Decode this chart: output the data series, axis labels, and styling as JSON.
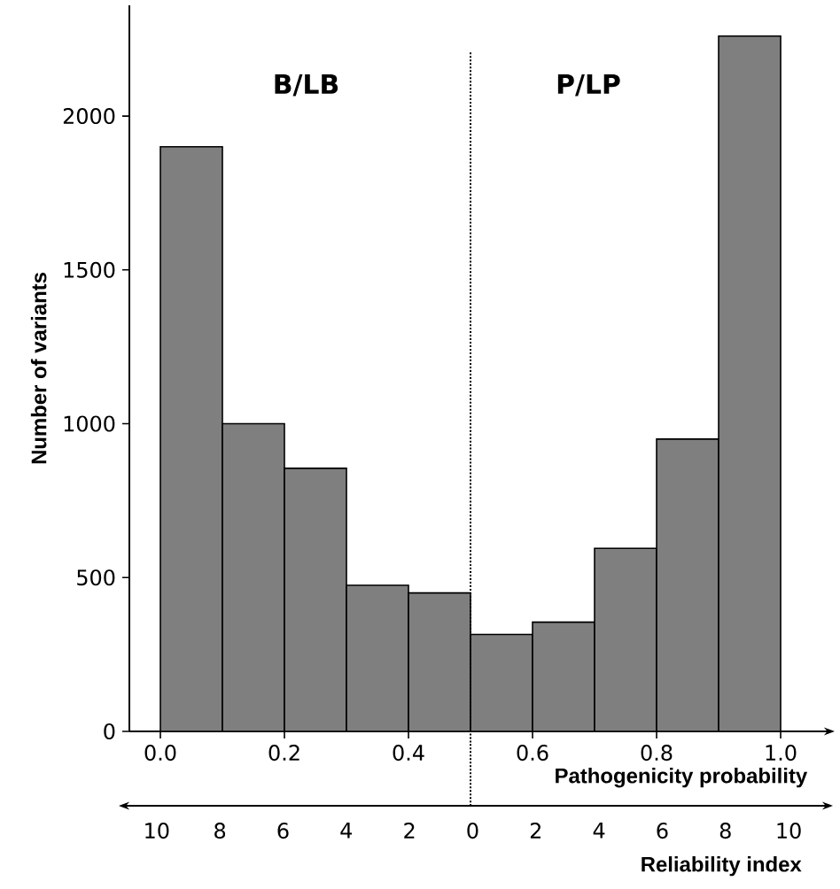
{
  "chart_data": {
    "type": "histogram",
    "xlabel": "Pathogenicity probability",
    "ylabel": "Number of variants",
    "x2label": "Reliability index",
    "color": "#7f7f7f",
    "bins": [
      0,
      0.1,
      0.2,
      0.3,
      0.4,
      0.5,
      0.6,
      0.7,
      0.8,
      0.9,
      1.0
    ],
    "values": [
      1900,
      1000,
      855,
      475,
      450,
      315,
      355,
      595,
      950,
      2260
    ],
    "xlim": [
      -0.05,
      1.07
    ],
    "ylim": [
      0,
      2360
    ],
    "xticks": [
      {
        "value": 0,
        "label": "0.0"
      },
      {
        "value": 0.2,
        "label": "0.2"
      },
      {
        "value": 0.4,
        "label": "0.4"
      },
      {
        "value": 0.6,
        "label": "0.6"
      },
      {
        "value": 0.8,
        "label": "0.8"
      },
      {
        "value": 1.0,
        "label": "1.0"
      }
    ],
    "yticks": [
      0,
      500,
      1000,
      1500,
      2000
    ],
    "x2lim": [
      -11.2,
      11.4
    ],
    "x2ticks": [
      {
        "value": -10,
        "label": "10"
      },
      {
        "value": -8,
        "label": "8"
      },
      {
        "value": -6,
        "label": "6"
      },
      {
        "value": -4,
        "label": "4"
      },
      {
        "value": -2,
        "label": "2"
      },
      {
        "value": 0,
        "label": "0"
      },
      {
        "value": 2,
        "label": "2"
      },
      {
        "value": 4,
        "label": "4"
      },
      {
        "value": 6,
        "label": "6"
      },
      {
        "value": 8,
        "label": "8"
      },
      {
        "value": 10,
        "label": "10"
      }
    ],
    "ref_lines": [
      {
        "axis": "x",
        "value": 0.5,
        "line_style": "dotted"
      }
    ],
    "annotations": [
      "B/LB",
      "P/LP"
    ]
  }
}
